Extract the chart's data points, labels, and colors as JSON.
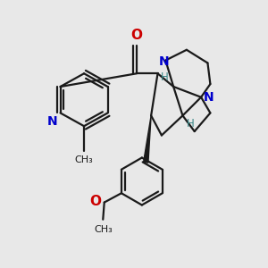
{
  "bg_color": "#e8e8e8",
  "bond_color": "#1a1a1a",
  "N_color": "#0000cc",
  "O_color": "#cc0000",
  "H_color": "#3a8888",
  "lw": 1.6,
  "figsize": [
    3.0,
    3.0
  ],
  "dpi": 100,
  "xlim": [
    0,
    10
  ],
  "ylim": [
    0,
    10
  ]
}
